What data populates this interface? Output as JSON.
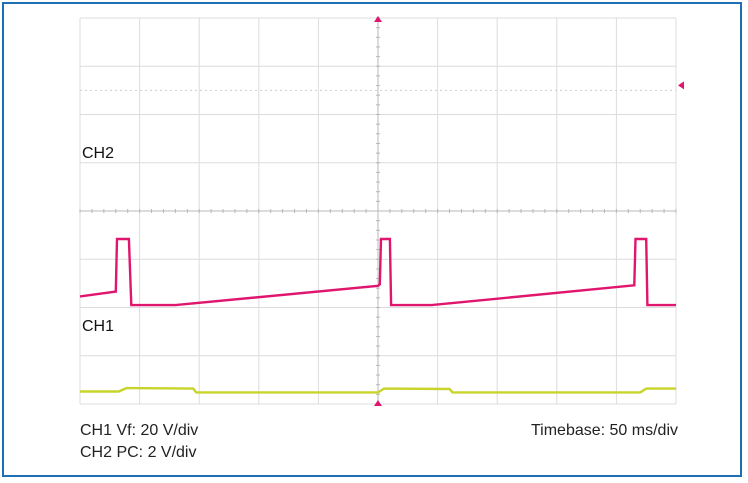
{
  "chart_data": {
    "type": "line",
    "title": "",
    "grid": true,
    "x_divisions": 10,
    "y_divisions": 8,
    "series": [
      {
        "name": "CH2",
        "color": "#e0166e",
        "points": [
          [
            0,
            2.23
          ],
          [
            0.6,
            2.33
          ],
          [
            0.62,
            3.42
          ],
          [
            0.82,
            3.42
          ],
          [
            0.86,
            2.05
          ],
          [
            1.6,
            2.05
          ],
          [
            5,
            2.45
          ],
          [
            5.03,
            2.48
          ],
          [
            5.05,
            3.42
          ],
          [
            5.2,
            3.42
          ],
          [
            5.22,
            2.05
          ],
          [
            5.9,
            2.05
          ],
          [
            9.3,
            2.46
          ],
          [
            9.32,
            3.42
          ],
          [
            9.5,
            3.42
          ],
          [
            9.52,
            2.05
          ],
          [
            10,
            2.05
          ]
        ]
      },
      {
        "name": "CH1",
        "color": "#c8d42a",
        "points": [
          [
            0,
            0.26
          ],
          [
            0.65,
            0.26
          ],
          [
            0.78,
            0.33
          ],
          [
            1.9,
            0.32
          ],
          [
            1.95,
            0.24
          ],
          [
            5,
            0.24
          ],
          [
            5.1,
            0.32
          ],
          [
            6.2,
            0.31
          ],
          [
            6.25,
            0.24
          ],
          [
            9.4,
            0.24
          ],
          [
            9.5,
            0.32
          ],
          [
            10,
            0.32
          ]
        ]
      }
    ]
  },
  "labels": {
    "ch2": "CH2",
    "ch1": "CH1",
    "info_line1": "CH1 Vf: 20 V/div",
    "info_line2": "CH2 PC: 2 V/div",
    "timebase": "Timebase: 50 ms/div"
  }
}
